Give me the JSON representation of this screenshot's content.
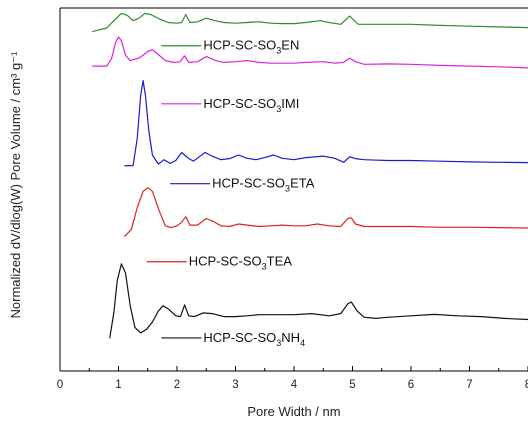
{
  "chart_data": {
    "type": "line",
    "xlabel": "Pore Width / nm",
    "ylabel": "Normalized dV/dlog(W) Pore Volume / cm³ g⁻¹",
    "xlim": [
      0,
      8
    ],
    "ylim": [
      0,
      10
    ],
    "x_ticks": [
      0,
      1,
      2,
      3,
      4,
      5,
      6,
      7,
      8
    ],
    "y_ticks": [],
    "grid": false,
    "legend": "inline labels next to each curve",
    "series": [
      {
        "name": "HCP-SC-SO₃EN",
        "color": "#2e8b2e",
        "label_parts": [
          {
            "t": "HCP-SC-SO"
          },
          {
            "t": "3",
            "sub": true
          },
          {
            "t": "EN"
          }
        ],
        "label_pos": {
          "x": 2.45,
          "y": 8.85
        },
        "points": [
          [
            0.55,
            9.35
          ],
          [
            0.8,
            9.45
          ],
          [
            0.95,
            9.7
          ],
          [
            1.05,
            9.85
          ],
          [
            1.15,
            9.8
          ],
          [
            1.25,
            9.65
          ],
          [
            1.35,
            9.72
          ],
          [
            1.45,
            9.85
          ],
          [
            1.55,
            9.82
          ],
          [
            1.7,
            9.7
          ],
          [
            1.85,
            9.6
          ],
          [
            2.0,
            9.58
          ],
          [
            2.08,
            9.6
          ],
          [
            2.15,
            9.82
          ],
          [
            2.22,
            9.6
          ],
          [
            2.35,
            9.62
          ],
          [
            2.5,
            9.72
          ],
          [
            2.65,
            9.65
          ],
          [
            2.8,
            9.6
          ],
          [
            3.0,
            9.58
          ],
          [
            3.2,
            9.6
          ],
          [
            3.4,
            9.62
          ],
          [
            3.6,
            9.58
          ],
          [
            3.8,
            9.57
          ],
          [
            4.0,
            9.57
          ],
          [
            4.2,
            9.6
          ],
          [
            4.45,
            9.65
          ],
          [
            4.6,
            9.6
          ],
          [
            4.8,
            9.55
          ],
          [
            4.9,
            9.7
          ],
          [
            4.95,
            9.78
          ],
          [
            5.0,
            9.7
          ],
          [
            5.1,
            9.55
          ],
          [
            5.5,
            9.55
          ],
          [
            6.0,
            9.55
          ],
          [
            6.5,
            9.52
          ],
          [
            7.0,
            9.5
          ],
          [
            7.5,
            9.48
          ],
          [
            8.0,
            9.46
          ]
        ]
      },
      {
        "name": "HCP-SC-SO₃IMI",
        "color": "#e020e0",
        "label_parts": [
          {
            "t": "HCP-SC-SO"
          },
          {
            "t": "3",
            "sub": true
          },
          {
            "t": "IMI"
          }
        ],
        "label_pos": {
          "x": 2.45,
          "y": 7.25
        },
        "points": [
          [
            0.55,
            8.4
          ],
          [
            0.8,
            8.4
          ],
          [
            0.88,
            8.6
          ],
          [
            0.95,
            9.05
          ],
          [
            1.0,
            9.2
          ],
          [
            1.05,
            9.1
          ],
          [
            1.12,
            8.7
          ],
          [
            1.2,
            8.55
          ],
          [
            1.35,
            8.62
          ],
          [
            1.5,
            8.8
          ],
          [
            1.58,
            8.85
          ],
          [
            1.68,
            8.72
          ],
          [
            1.8,
            8.55
          ],
          [
            1.95,
            8.5
          ],
          [
            2.05,
            8.52
          ],
          [
            2.13,
            8.68
          ],
          [
            2.2,
            8.5
          ],
          [
            2.35,
            8.52
          ],
          [
            2.5,
            8.66
          ],
          [
            2.65,
            8.56
          ],
          [
            2.8,
            8.5
          ],
          [
            3.0,
            8.52
          ],
          [
            3.2,
            8.55
          ],
          [
            3.4,
            8.5
          ],
          [
            3.6,
            8.48
          ],
          [
            3.8,
            8.48
          ],
          [
            4.0,
            8.48
          ],
          [
            4.2,
            8.5
          ],
          [
            4.5,
            8.52
          ],
          [
            4.7,
            8.48
          ],
          [
            4.85,
            8.5
          ],
          [
            4.95,
            8.62
          ],
          [
            5.05,
            8.52
          ],
          [
            5.2,
            8.45
          ],
          [
            5.6,
            8.46
          ],
          [
            6.0,
            8.45
          ],
          [
            6.5,
            8.42
          ],
          [
            7.0,
            8.4
          ],
          [
            7.5,
            8.38
          ],
          [
            8.0,
            8.35
          ]
        ]
      },
      {
        "name": "HCP-SC-SO₃ETA",
        "color": "#1a1ad0",
        "label_parts": [
          {
            "t": "HCP-SC-SO"
          },
          {
            "t": "3",
            "sub": true
          },
          {
            "t": "ETA"
          }
        ],
        "label_pos": {
          "x": 2.6,
          "y": 5.05
        },
        "points": [
          [
            1.1,
            5.65
          ],
          [
            1.25,
            5.66
          ],
          [
            1.32,
            6.4
          ],
          [
            1.38,
            7.6
          ],
          [
            1.42,
            8.0
          ],
          [
            1.46,
            7.6
          ],
          [
            1.52,
            6.6
          ],
          [
            1.58,
            5.95
          ],
          [
            1.68,
            5.7
          ],
          [
            1.78,
            5.82
          ],
          [
            1.88,
            5.72
          ],
          [
            1.98,
            5.8
          ],
          [
            2.08,
            6.02
          ],
          [
            2.18,
            5.88
          ],
          [
            2.28,
            5.78
          ],
          [
            2.38,
            5.9
          ],
          [
            2.48,
            6.02
          ],
          [
            2.6,
            5.92
          ],
          [
            2.75,
            5.82
          ],
          [
            2.9,
            5.85
          ],
          [
            3.05,
            5.95
          ],
          [
            3.2,
            5.86
          ],
          [
            3.35,
            5.82
          ],
          [
            3.5,
            5.88
          ],
          [
            3.65,
            5.95
          ],
          [
            3.8,
            5.86
          ],
          [
            4.0,
            5.82
          ],
          [
            4.2,
            5.88
          ],
          [
            4.5,
            5.92
          ],
          [
            4.7,
            5.86
          ],
          [
            4.85,
            5.75
          ],
          [
            4.95,
            5.9
          ],
          [
            5.05,
            5.85
          ],
          [
            5.2,
            5.82
          ],
          [
            5.6,
            5.8
          ],
          [
            6.0,
            5.8
          ],
          [
            6.5,
            5.78
          ],
          [
            7.0,
            5.76
          ],
          [
            7.5,
            5.75
          ],
          [
            8.0,
            5.74
          ]
        ]
      },
      {
        "name": "HCP-SC-SO₃TEA",
        "color": "#e02020",
        "label_parts": [
          {
            "t": "HCP-SC-SO"
          },
          {
            "t": "3",
            "sub": true
          },
          {
            "t": "TEA"
          }
        ],
        "label_pos": {
          "x": 2.2,
          "y": 2.9
        },
        "points": [
          [
            1.1,
            3.7
          ],
          [
            1.22,
            3.9
          ],
          [
            1.32,
            4.5
          ],
          [
            1.42,
            4.95
          ],
          [
            1.5,
            5.05
          ],
          [
            1.58,
            4.95
          ],
          [
            1.7,
            4.4
          ],
          [
            1.8,
            4.0
          ],
          [
            1.9,
            3.95
          ],
          [
            2.0,
            4.0
          ],
          [
            2.08,
            4.1
          ],
          [
            2.15,
            4.25
          ],
          [
            2.22,
            4.02
          ],
          [
            2.35,
            4.02
          ],
          [
            2.5,
            4.2
          ],
          [
            2.62,
            4.12
          ],
          [
            2.75,
            4.0
          ],
          [
            2.9,
            3.98
          ],
          [
            3.05,
            4.05
          ],
          [
            3.2,
            4.02
          ],
          [
            3.4,
            3.98
          ],
          [
            3.6,
            4.0
          ],
          [
            3.8,
            4.02
          ],
          [
            4.0,
            4.0
          ],
          [
            4.2,
            4.0
          ],
          [
            4.4,
            4.05
          ],
          [
            4.6,
            4.0
          ],
          [
            4.8,
            3.98
          ],
          [
            4.92,
            4.2
          ],
          [
            4.98,
            4.22
          ],
          [
            5.05,
            4.05
          ],
          [
            5.2,
            3.98
          ],
          [
            5.6,
            3.98
          ],
          [
            6.0,
            3.98
          ],
          [
            6.5,
            3.96
          ],
          [
            7.0,
            3.96
          ],
          [
            7.5,
            3.95
          ],
          [
            8.0,
            3.94
          ]
        ]
      },
      {
        "name": "HCP-SC-SO₃NH₄",
        "color": "#111111",
        "label_parts": [
          {
            "t": "HCP-SC-SO"
          },
          {
            "t": "3",
            "sub": true
          },
          {
            "t": "NH"
          },
          {
            "t": "4",
            "sub": true
          }
        ],
        "label_pos": {
          "x": 2.45,
          "y": 0.8
        },
        "points": [
          [
            0.85,
            0.9
          ],
          [
            0.92,
            1.6
          ],
          [
            0.98,
            2.5
          ],
          [
            1.05,
            2.95
          ],
          [
            1.12,
            2.7
          ],
          [
            1.2,
            1.8
          ],
          [
            1.28,
            1.2
          ],
          [
            1.38,
            1.05
          ],
          [
            1.48,
            1.15
          ],
          [
            1.58,
            1.35
          ],
          [
            1.68,
            1.65
          ],
          [
            1.76,
            1.8
          ],
          [
            1.86,
            1.7
          ],
          [
            1.98,
            1.52
          ],
          [
            2.06,
            1.5
          ],
          [
            2.13,
            1.82
          ],
          [
            2.2,
            1.52
          ],
          [
            2.3,
            1.5
          ],
          [
            2.45,
            1.6
          ],
          [
            2.6,
            1.58
          ],
          [
            2.8,
            1.5
          ],
          [
            3.0,
            1.5
          ],
          [
            3.2,
            1.52
          ],
          [
            3.4,
            1.55
          ],
          [
            3.6,
            1.55
          ],
          [
            3.8,
            1.55
          ],
          [
            4.0,
            1.55
          ],
          [
            4.3,
            1.58
          ],
          [
            4.6,
            1.52
          ],
          [
            4.8,
            1.58
          ],
          [
            4.92,
            1.85
          ],
          [
            4.98,
            1.9
          ],
          [
            5.08,
            1.65
          ],
          [
            5.2,
            1.48
          ],
          [
            5.4,
            1.45
          ],
          [
            5.6,
            1.48
          ],
          [
            6.0,
            1.52
          ],
          [
            6.4,
            1.56
          ],
          [
            6.8,
            1.52
          ],
          [
            7.2,
            1.5
          ],
          [
            7.6,
            1.45
          ],
          [
            8.0,
            1.42
          ]
        ]
      }
    ]
  }
}
